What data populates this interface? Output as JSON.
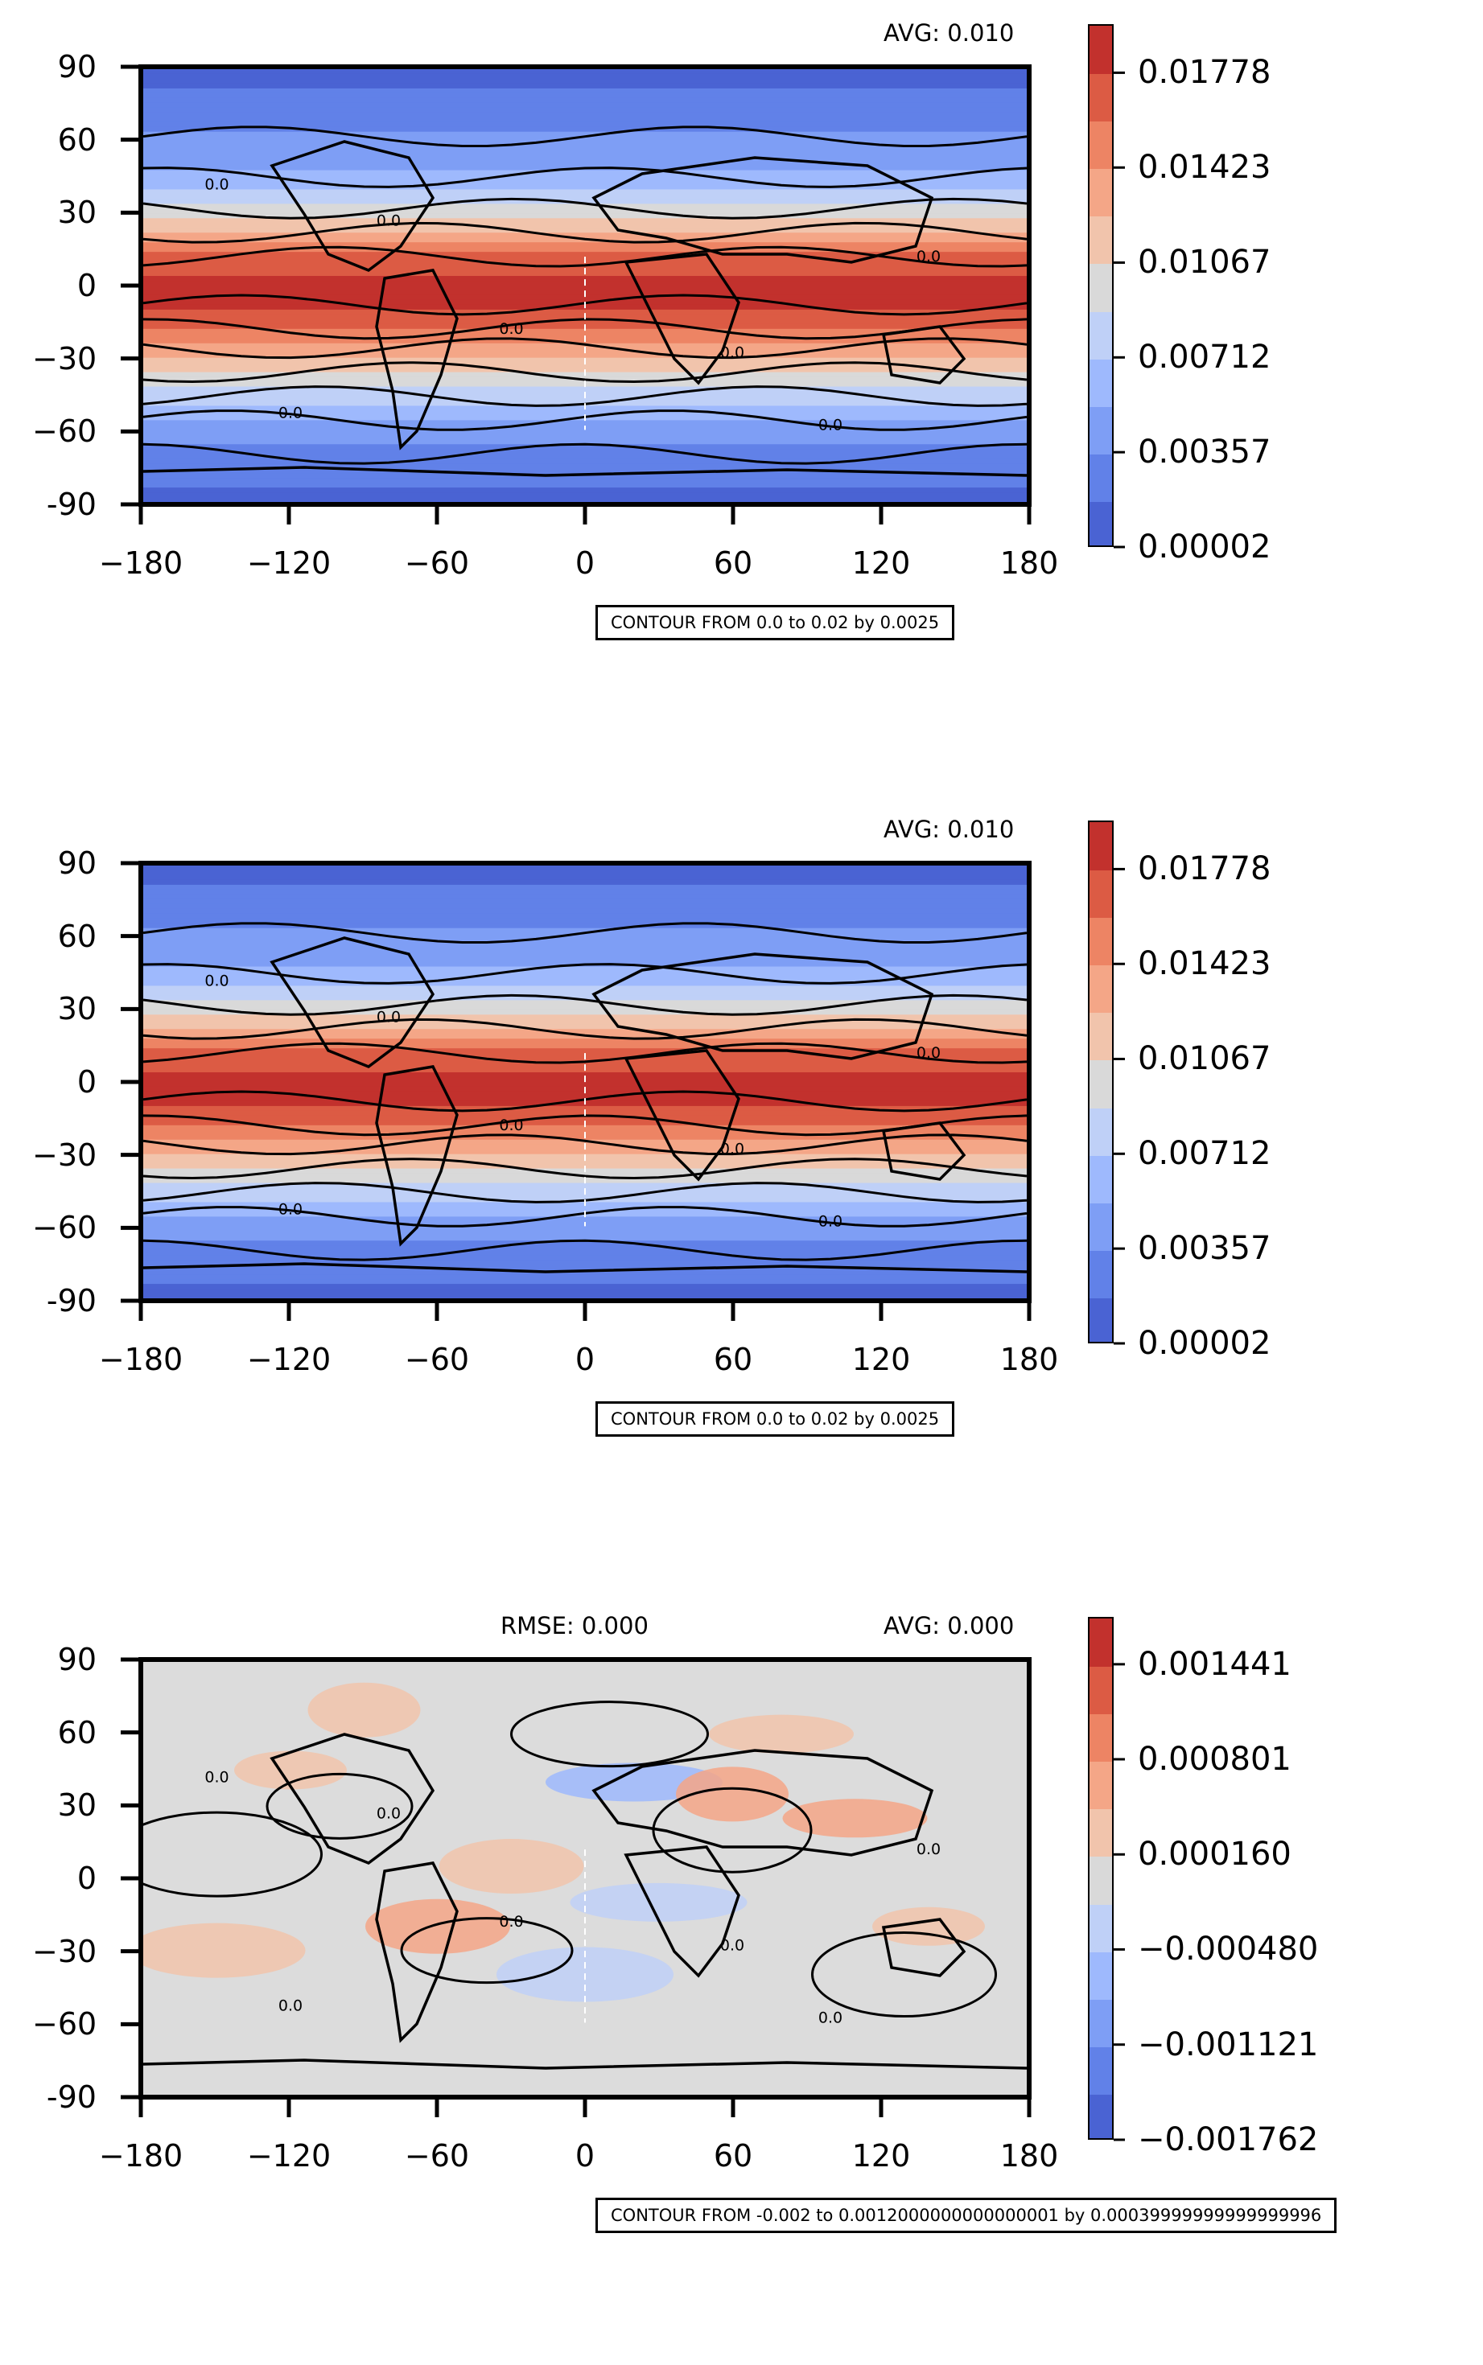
{
  "y_ticks": [
    "90",
    "60",
    "30",
    "0",
    "−30",
    "−60",
    "-90"
  ],
  "x_ticks": [
    "−180",
    "−120",
    "−60",
    "0",
    "60",
    "120",
    "180"
  ],
  "panels": [
    {
      "avg": "AVG: 0.010",
      "rmse": "",
      "colorbar_ticks": [
        "0.01778",
        "0.01423",
        "0.01067",
        "0.00712",
        "0.00357",
        "0.00002"
      ],
      "contour_note": "CONTOUR FROM 0.0 to 0.02 by 0.0025"
    },
    {
      "avg": "AVG: 0.010",
      "rmse": "",
      "colorbar_ticks": [
        "0.01778",
        "0.01423",
        "0.01067",
        "0.00712",
        "0.00357",
        "0.00002"
      ],
      "contour_note": "CONTOUR FROM 0.0 to 0.02 by 0.0025"
    },
    {
      "avg": "AVG: 0.000",
      "rmse": "RMSE: 0.000",
      "colorbar_ticks": [
        "0.001441",
        "0.000801",
        "0.000160",
        "−0.000480",
        "−0.001121",
        "−0.001762"
      ],
      "contour_note": "CONTOUR FROM -0.002 to 0.0012000000000000001 by 0.00039999999999999996"
    }
  ],
  "chart_data": [
    {
      "type": "heatmap",
      "title": "",
      "xlabel": "",
      "ylabel": "",
      "xlim": [
        -180,
        180
      ],
      "ylim": [
        -90,
        90
      ],
      "x_ticks": [
        -180,
        -120,
        -60,
        0,
        60,
        120,
        180
      ],
      "y_ticks": [
        90,
        60,
        30,
        0,
        -30,
        -60,
        -90
      ],
      "colorbar_range": [
        2e-05,
        0.0196
      ],
      "colorbar_ticks": [
        2e-05,
        0.00357,
        0.00712,
        0.01067,
        0.01423,
        0.01778
      ],
      "colormap": "coolwarm",
      "avg": 0.01,
      "contour_levels": [
        0.0,
        0.02,
        0.0025
      ],
      "contour_label": "0.0",
      "latitude_profile": {
        "lat": [
          90,
          60,
          45,
          30,
          15,
          0,
          -15,
          -30,
          -45,
          -60,
          -90
        ],
        "value": [
          0.001,
          0.004,
          0.006,
          0.01,
          0.016,
          0.019,
          0.017,
          0.012,
          0.008,
          0.004,
          0.001
        ]
      }
    },
    {
      "type": "heatmap",
      "title": "",
      "xlabel": "",
      "ylabel": "",
      "xlim": [
        -180,
        180
      ],
      "ylim": [
        -90,
        90
      ],
      "x_ticks": [
        -180,
        -120,
        -60,
        0,
        60,
        120,
        180
      ],
      "y_ticks": [
        90,
        60,
        30,
        0,
        -30,
        -60,
        -90
      ],
      "colorbar_range": [
        2e-05,
        0.0196
      ],
      "colorbar_ticks": [
        2e-05,
        0.00357,
        0.00712,
        0.01067,
        0.01423,
        0.01778
      ],
      "colormap": "coolwarm",
      "avg": 0.01,
      "contour_levels": [
        0.0,
        0.02,
        0.0025
      ],
      "contour_label": "0.0",
      "latitude_profile": {
        "lat": [
          90,
          60,
          45,
          30,
          15,
          0,
          -15,
          -30,
          -45,
          -60,
          -90
        ],
        "value": [
          0.001,
          0.004,
          0.006,
          0.01,
          0.016,
          0.019,
          0.017,
          0.012,
          0.008,
          0.004,
          0.001
        ]
      }
    },
    {
      "type": "heatmap",
      "title": "",
      "xlabel": "",
      "ylabel": "",
      "xlim": [
        -180,
        180
      ],
      "ylim": [
        -90,
        90
      ],
      "x_ticks": [
        -180,
        -120,
        -60,
        0,
        60,
        120,
        180
      ],
      "y_ticks": [
        90,
        60,
        30,
        0,
        -30,
        -60,
        -90
      ],
      "colorbar_range": [
        -0.001762,
        0.00176
      ],
      "colorbar_ticks": [
        -0.001762,
        -0.001121,
        -0.00048,
        0.00016,
        0.000801,
        0.001441
      ],
      "colormap": "coolwarm",
      "avg": 0.0,
      "rmse": 0.0,
      "contour_levels": [
        -0.002,
        0.0012000000000000001,
        0.00039999999999999996
      ],
      "contour_label": "0.0"
    }
  ],
  "colors": {
    "cmap": [
      "#4a63d3",
      "#6181e8",
      "#7e9ef5",
      "#9eb9fd",
      "#bfd0f7",
      "#d9d9d9",
      "#f1c4ac",
      "#f4a687",
      "#ed8464",
      "#dc5b44",
      "#c2312d"
    ],
    "diff_bg": "#dcdcdc",
    "contour": "#000000",
    "zero_line": "#ffffff"
  }
}
